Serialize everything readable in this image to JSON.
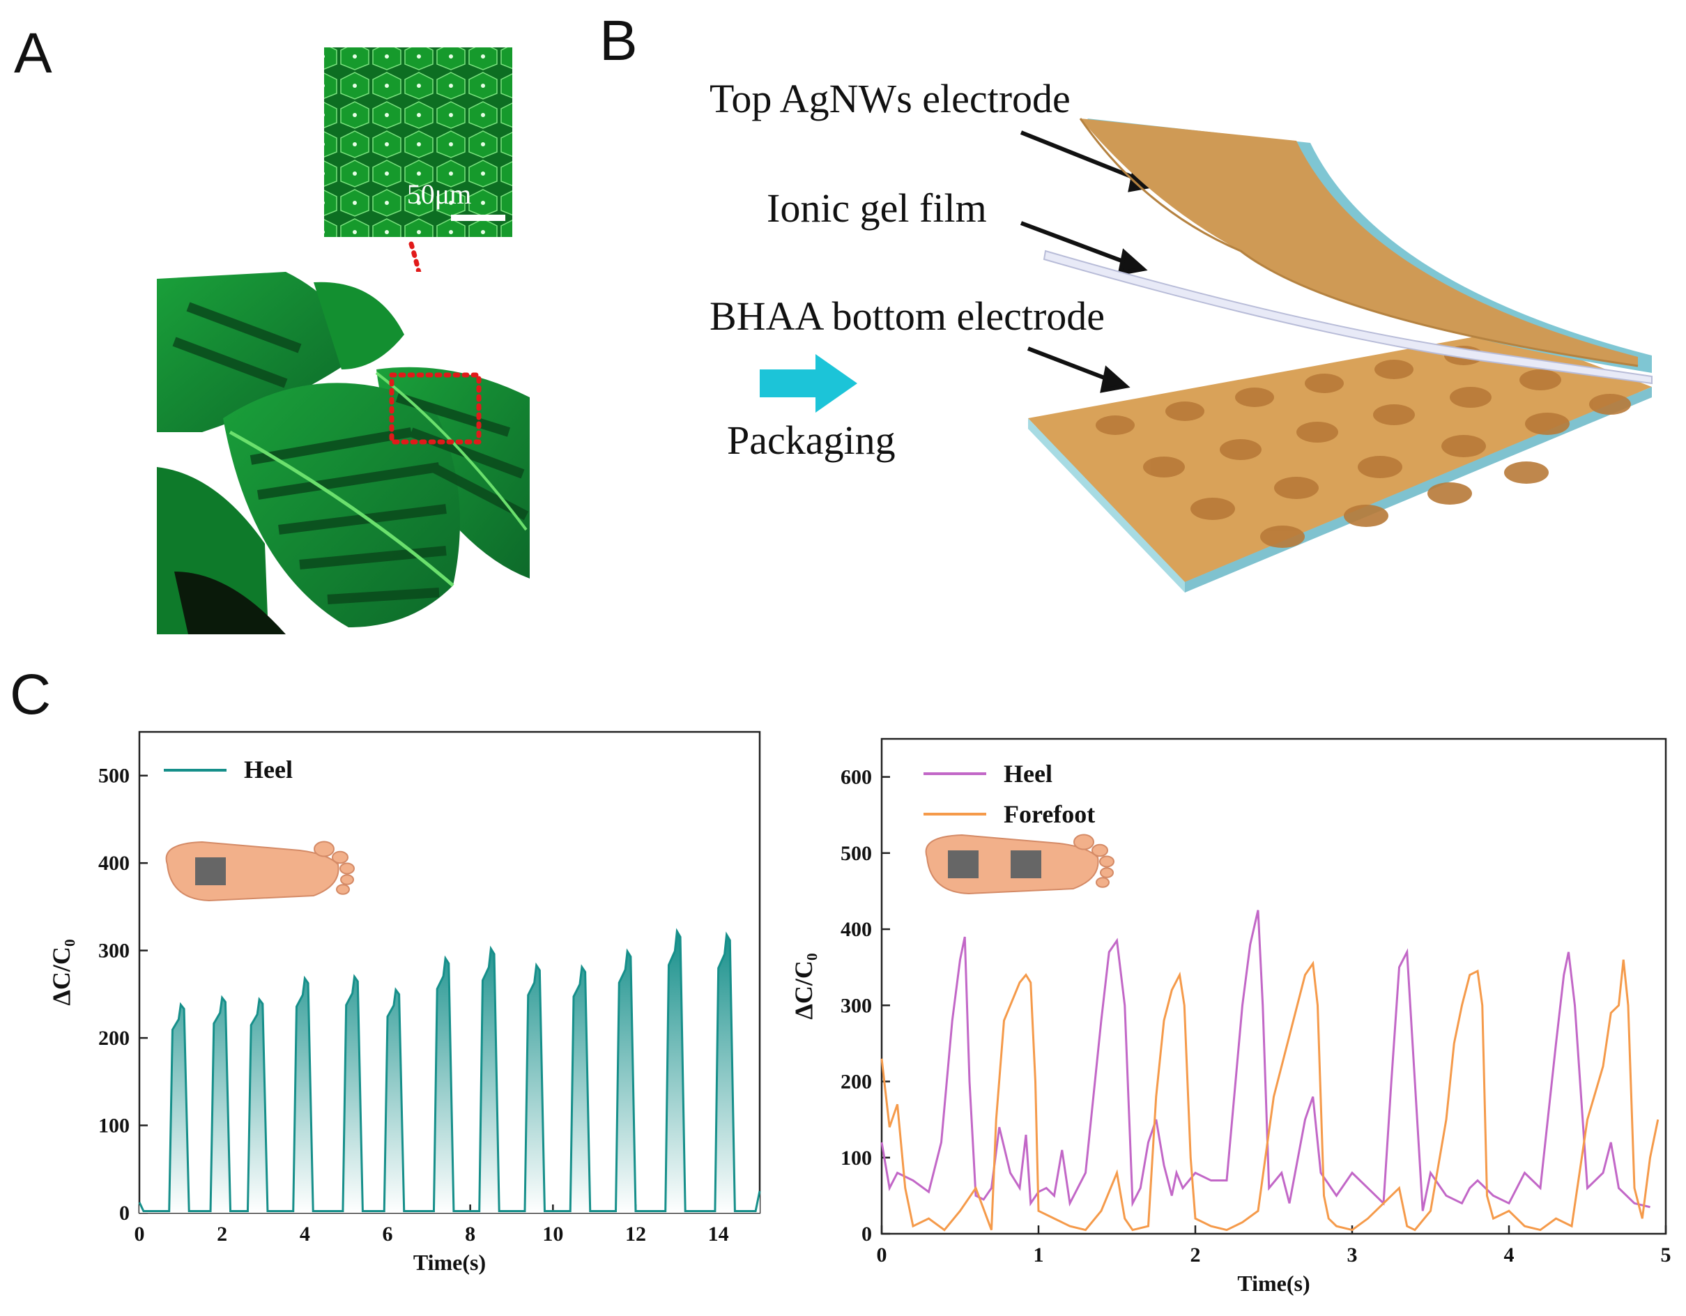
{
  "panels": {
    "a": {
      "letter": "A",
      "scale_bar": "50μm"
    },
    "b": {
      "letter": "B",
      "labels": {
        "top": "Top AgNWs electrode",
        "middle": "Ionic gel film",
        "bottom": "BHAA bottom electrode",
        "arrow": "Packaging"
      }
    },
    "c": {
      "letter": "C"
    }
  },
  "colors": {
    "teal": "#168f8a",
    "purple": "#c267c7",
    "orange": "#f59a4a",
    "leaf_dark": "#0b4f22",
    "leaf_light": "#36c24a",
    "gold": "#d9a259",
    "cyan_edge": "#9fd3dc",
    "arrow_cyan": "#1cc4d8"
  },
  "chart_data": [
    {
      "type": "area",
      "xlabel": "Time(s)",
      "ylabel": "ΔC/C₀",
      "xlim": [
        0,
        15
      ],
      "ylim": [
        0,
        550
      ],
      "xticks": [
        0,
        2,
        4,
        6,
        8,
        10,
        12,
        14
      ],
      "yticks": [
        0,
        100,
        200,
        300,
        400,
        500
      ],
      "series": [
        {
          "name": "Heel",
          "peaks": [
            {
              "t": 1.0,
              "v": 238
            },
            {
              "t": 2.0,
              "v": 246
            },
            {
              "t": 2.9,
              "v": 244
            },
            {
              "t": 4.0,
              "v": 268
            },
            {
              "t": 5.2,
              "v": 270
            },
            {
              "t": 6.2,
              "v": 255
            },
            {
              "t": 7.4,
              "v": 291
            },
            {
              "t": 8.5,
              "v": 302
            },
            {
              "t": 9.6,
              "v": 283
            },
            {
              "t": 10.7,
              "v": 281
            },
            {
              "t": 11.8,
              "v": 299
            },
            {
              "t": 13.0,
              "v": 322
            },
            {
              "t": 14.2,
              "v": 318
            }
          ]
        }
      ],
      "grid": false,
      "legend": "top-left"
    },
    {
      "type": "line",
      "xlabel": "Time(s)",
      "ylabel": "ΔC/C₀",
      "xlim": [
        0,
        5
      ],
      "ylim": [
        0,
        650
      ],
      "xticks": [
        0,
        1,
        2,
        3,
        4,
        5
      ],
      "yticks": [
        0,
        100,
        200,
        300,
        400,
        500,
        600
      ],
      "series": [
        {
          "name": "Heel",
          "x": [
            0,
            0.05,
            0.1,
            0.2,
            0.3,
            0.38,
            0.45,
            0.5,
            0.53,
            0.56,
            0.6,
            0.65,
            0.7,
            0.75,
            0.82,
            0.88,
            0.92,
            0.95,
            1.0,
            1.05,
            1.1,
            1.15,
            1.2,
            1.3,
            1.4,
            1.45,
            1.5,
            1.55,
            1.6,
            1.65,
            1.7,
            1.75,
            1.8,
            1.85,
            1.88,
            1.92,
            2.0,
            2.1,
            2.2,
            2.3,
            2.35,
            2.4,
            2.43,
            2.47,
            2.55,
            2.6,
            2.7,
            2.75,
            2.8,
            2.9,
            3.0,
            3.1,
            3.2,
            3.25,
            3.3,
            3.35,
            3.4,
            3.45,
            3.5,
            3.6,
            3.7,
            3.75,
            3.8,
            3.9,
            4.0,
            4.1,
            4.2,
            4.3,
            4.35,
            4.38,
            4.42,
            4.5,
            4.6,
            4.65,
            4.7,
            4.8,
            4.9
          ],
          "y": [
            120,
            60,
            80,
            70,
            55,
            120,
            280,
            360,
            390,
            200,
            50,
            45,
            60,
            140,
            80,
            60,
            130,
            40,
            55,
            60,
            50,
            110,
            40,
            80,
            280,
            370,
            385,
            300,
            40,
            60,
            120,
            150,
            90,
            50,
            80,
            60,
            80,
            70,
            70,
            300,
            380,
            425,
            300,
            60,
            80,
            40,
            150,
            180,
            80,
            50,
            80,
            60,
            40,
            200,
            350,
            370,
            200,
            30,
            80,
            50,
            40,
            60,
            70,
            50,
            40,
            80,
            60,
            250,
            340,
            370,
            300,
            60,
            80,
            120,
            60,
            40,
            35
          ]
        },
        {
          "name": "Forefoot",
          "x": [
            0,
            0.05,
            0.1,
            0.15,
            0.2,
            0.3,
            0.4,
            0.5,
            0.6,
            0.7,
            0.73,
            0.78,
            0.82,
            0.88,
            0.92,
            0.95,
            0.98,
            1.0,
            1.1,
            1.2,
            1.3,
            1.4,
            1.5,
            1.55,
            1.6,
            1.7,
            1.75,
            1.8,
            1.85,
            1.9,
            1.93,
            1.97,
            2.0,
            2.1,
            2.2,
            2.3,
            2.4,
            2.5,
            2.6,
            2.65,
            2.7,
            2.75,
            2.78,
            2.82,
            2.85,
            2.9,
            3.0,
            3.1,
            3.2,
            3.3,
            3.35,
            3.4,
            3.5,
            3.6,
            3.65,
            3.7,
            3.75,
            3.8,
            3.83,
            3.86,
            3.9,
            4.0,
            4.1,
            4.2,
            4.3,
            4.4,
            4.5,
            4.6,
            4.65,
            4.7,
            4.73,
            4.76,
            4.8,
            4.85,
            4.9,
            4.95
          ],
          "y": [
            230,
            140,
            170,
            60,
            10,
            20,
            5,
            30,
            60,
            5,
            150,
            280,
            300,
            330,
            340,
            330,
            200,
            30,
            20,
            10,
            5,
            30,
            80,
            20,
            5,
            10,
            180,
            280,
            320,
            340,
            300,
            100,
            20,
            10,
            5,
            15,
            30,
            180,
            260,
            300,
            340,
            355,
            300,
            50,
            20,
            10,
            5,
            20,
            40,
            60,
            10,
            5,
            30,
            150,
            250,
            300,
            340,
            345,
            300,
            50,
            20,
            30,
            10,
            5,
            20,
            10,
            150,
            220,
            290,
            300,
            360,
            300,
            60,
            20,
            100,
            150
          ]
        }
      ],
      "grid": false,
      "legend": "top-left"
    }
  ]
}
